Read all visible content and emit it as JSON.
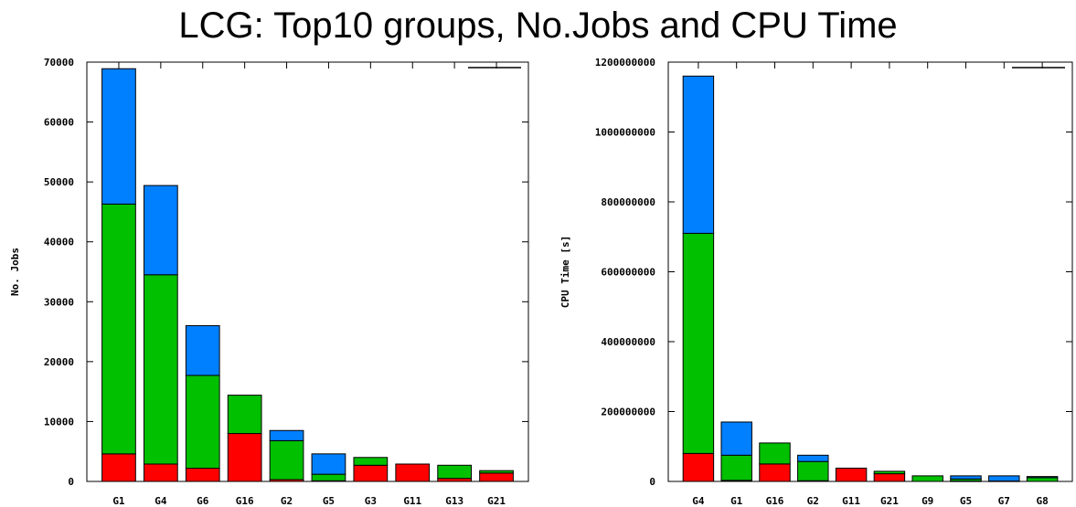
{
  "title": "LCG: Top10 groups, No.Jobs and CPU Time",
  "colors": {
    "red": "#ff0000",
    "green": "#00c000",
    "blue": "#0080ff"
  },
  "chart_data": [
    {
      "type": "bar",
      "stacked": true,
      "title": "",
      "xlabel": "",
      "ylabel": "No. Jobs",
      "ylim": [
        0,
        70000
      ],
      "yticks": [
        0,
        10000,
        20000,
        30000,
        40000,
        50000,
        60000,
        70000
      ],
      "ytick_labels": [
        "0",
        "10000",
        "20000",
        "30000",
        "40000",
        "50000",
        "60000",
        "70000"
      ],
      "grid": false,
      "legend": "top-right",
      "categories": [
        "G1",
        "G4",
        "G6",
        "G16",
        "G2",
        "G5",
        "G3",
        "G11",
        "G13",
        "G21"
      ],
      "series": [
        {
          "color": "#ff0000",
          "values": [
            4600,
            2900,
            2200,
            8000,
            300,
            100,
            2700,
            2900,
            500,
            1400
          ]
        },
        {
          "color": "#00c000",
          "values": [
            41700,
            31600,
            15500,
            6400,
            6500,
            1100,
            1300,
            0,
            2200,
            400
          ]
        },
        {
          "color": "#0080ff",
          "values": [
            22600,
            14900,
            8300,
            0,
            1700,
            3400,
            0,
            0,
            0,
            0
          ]
        }
      ]
    },
    {
      "type": "bar",
      "stacked": true,
      "title": "",
      "xlabel": "",
      "ylabel": "CPU Time [s]",
      "ylim": [
        0,
        1200000000
      ],
      "yticks": [
        0,
        200000000,
        400000000,
        600000000,
        800000000,
        1000000000,
        1200000000
      ],
      "ytick_labels": [
        "0",
        "200000000",
        "400000000",
        "600000000",
        "800000000",
        "1000000000",
        "1200000000"
      ],
      "grid": false,
      "legend": "top-right",
      "categories": [
        "G4",
        "G1",
        "G16",
        "G2",
        "G11",
        "G21",
        "G9",
        "G5",
        "G7",
        "G8"
      ],
      "series": [
        {
          "color": "#ff0000",
          "values": [
            80000000,
            3000000,
            50000000,
            2000000,
            38000000,
            22000000,
            0,
            1000000,
            0,
            0
          ]
        },
        {
          "color": "#00c000",
          "values": [
            630000000,
            72000000,
            60000000,
            55000000,
            0,
            7000000,
            16000000,
            6000000,
            1000000,
            11000000
          ]
        },
        {
          "color": "#0080ff",
          "values": [
            450000000,
            95000000,
            0,
            18000000,
            0,
            0,
            0,
            9000000,
            15000000,
            3000000
          ]
        }
      ]
    }
  ]
}
